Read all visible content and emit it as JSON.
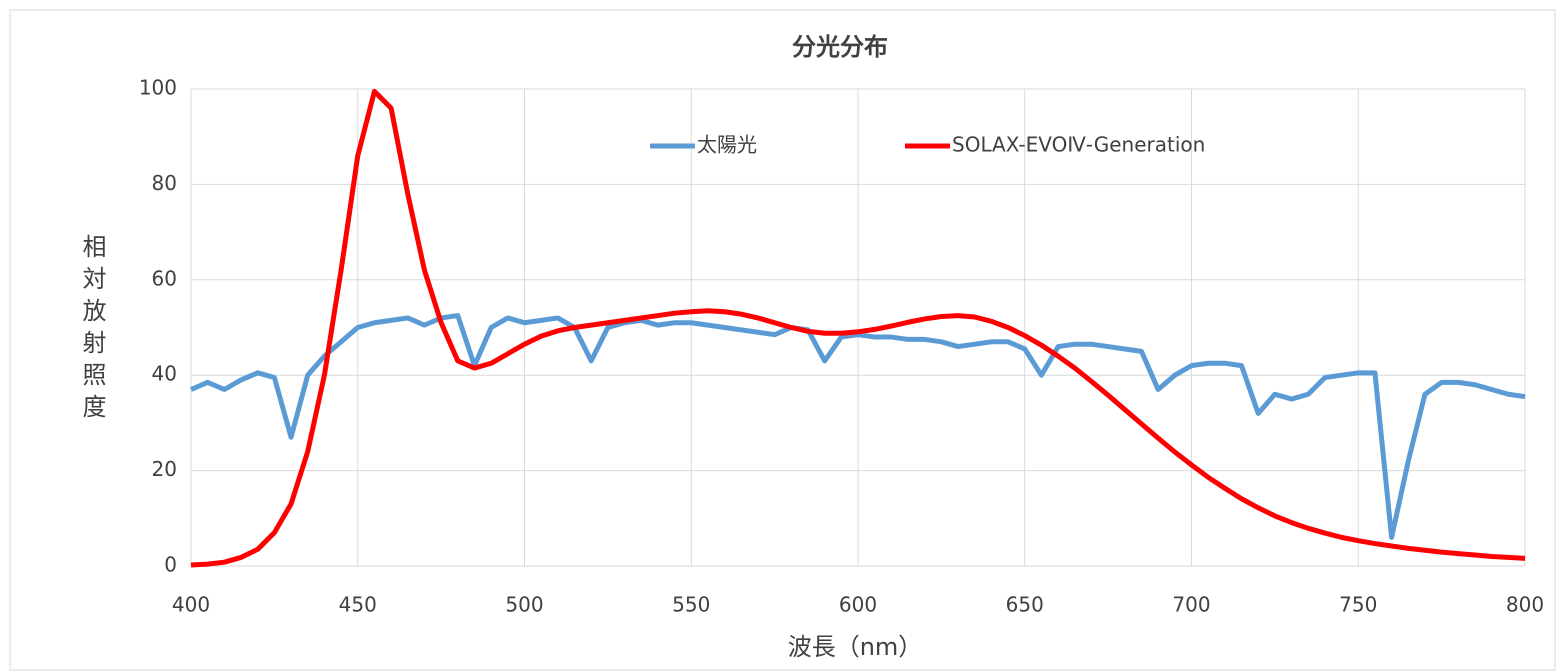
{
  "chart_data": {
    "type": "line",
    "title": "分光分布",
    "xlabel": "波長（nm）",
    "ylabel": "相対放射照度",
    "x": [
      400,
      405,
      410,
      415,
      420,
      425,
      430,
      435,
      440,
      445,
      450,
      455,
      460,
      465,
      470,
      475,
      480,
      485,
      490,
      495,
      500,
      505,
      510,
      515,
      520,
      525,
      530,
      535,
      540,
      545,
      550,
      555,
      560,
      565,
      570,
      575,
      580,
      585,
      590,
      595,
      600,
      605,
      610,
      615,
      620,
      625,
      630,
      635,
      640,
      645,
      650,
      655,
      660,
      665,
      670,
      675,
      680,
      685,
      690,
      695,
      700,
      705,
      710,
      715,
      720,
      725,
      730,
      735,
      740,
      745,
      750,
      755,
      760,
      765,
      770,
      775,
      780,
      785,
      790,
      795,
      800
    ],
    "series": [
      {
        "name": "太陽光",
        "color": "#5b9bd5",
        "values": [
          37,
          38.5,
          37,
          39,
          40.5,
          39.5,
          27,
          40,
          44,
          47,
          50,
          51,
          51.5,
          52,
          50.5,
          52,
          52.5,
          42,
          50,
          52,
          51,
          51.5,
          52,
          50,
          43,
          50,
          51,
          51.5,
          50.5,
          51,
          51,
          50.5,
          50,
          49.5,
          49,
          48.5,
          50,
          49.5,
          43,
          48,
          48.5,
          48,
          48,
          47.5,
          47.5,
          47,
          46,
          46.5,
          47,
          47,
          45.5,
          40,
          46,
          46.5,
          46.5,
          46,
          45.5,
          45,
          37,
          40,
          42,
          42.5,
          42.5,
          42,
          32,
          36,
          35,
          36,
          39.5,
          40,
          40.5,
          40.5,
          6,
          22,
          36,
          38.5,
          38.5,
          38,
          37,
          36,
          35.5
        ]
      },
      {
        "name": "SOLAX-EVOⅣ-Generation",
        "color": "#ff0000",
        "values": [
          0.2,
          0.4,
          0.8,
          1.8,
          3.5,
          7,
          13,
          24,
          40,
          62,
          86,
          99.5,
          96,
          78,
          62,
          51,
          43,
          41.5,
          42.5,
          44.5,
          46.5,
          48.2,
          49.3,
          50,
          50.5,
          51,
          51.5,
          52,
          52.5,
          53,
          53.3,
          53.5,
          53.3,
          52.8,
          52,
          51,
          50,
          49.2,
          48.8,
          48.8,
          49.1,
          49.6,
          50.3,
          51.1,
          51.8,
          52.3,
          52.5,
          52.2,
          51.3,
          50,
          48.3,
          46.3,
          44,
          41.5,
          38.7,
          35.8,
          32.8,
          29.8,
          26.8,
          23.9,
          21.2,
          18.6,
          16.3,
          14.1,
          12.2,
          10.5,
          9.1,
          7.9,
          6.9,
          6,
          5.3,
          4.7,
          4.2,
          3.7,
          3.3,
          2.9,
          2.6,
          2.3,
          2,
          1.8,
          1.6
        ]
      }
    ],
    "xlim": [
      400,
      800
    ],
    "xticks": [
      400,
      450,
      500,
      550,
      600,
      650,
      700,
      750,
      800
    ],
    "ylim": [
      0,
      100
    ],
    "yticks": [
      0,
      20,
      40,
      60,
      80,
      100
    ],
    "grid": true,
    "legend": "top"
  }
}
